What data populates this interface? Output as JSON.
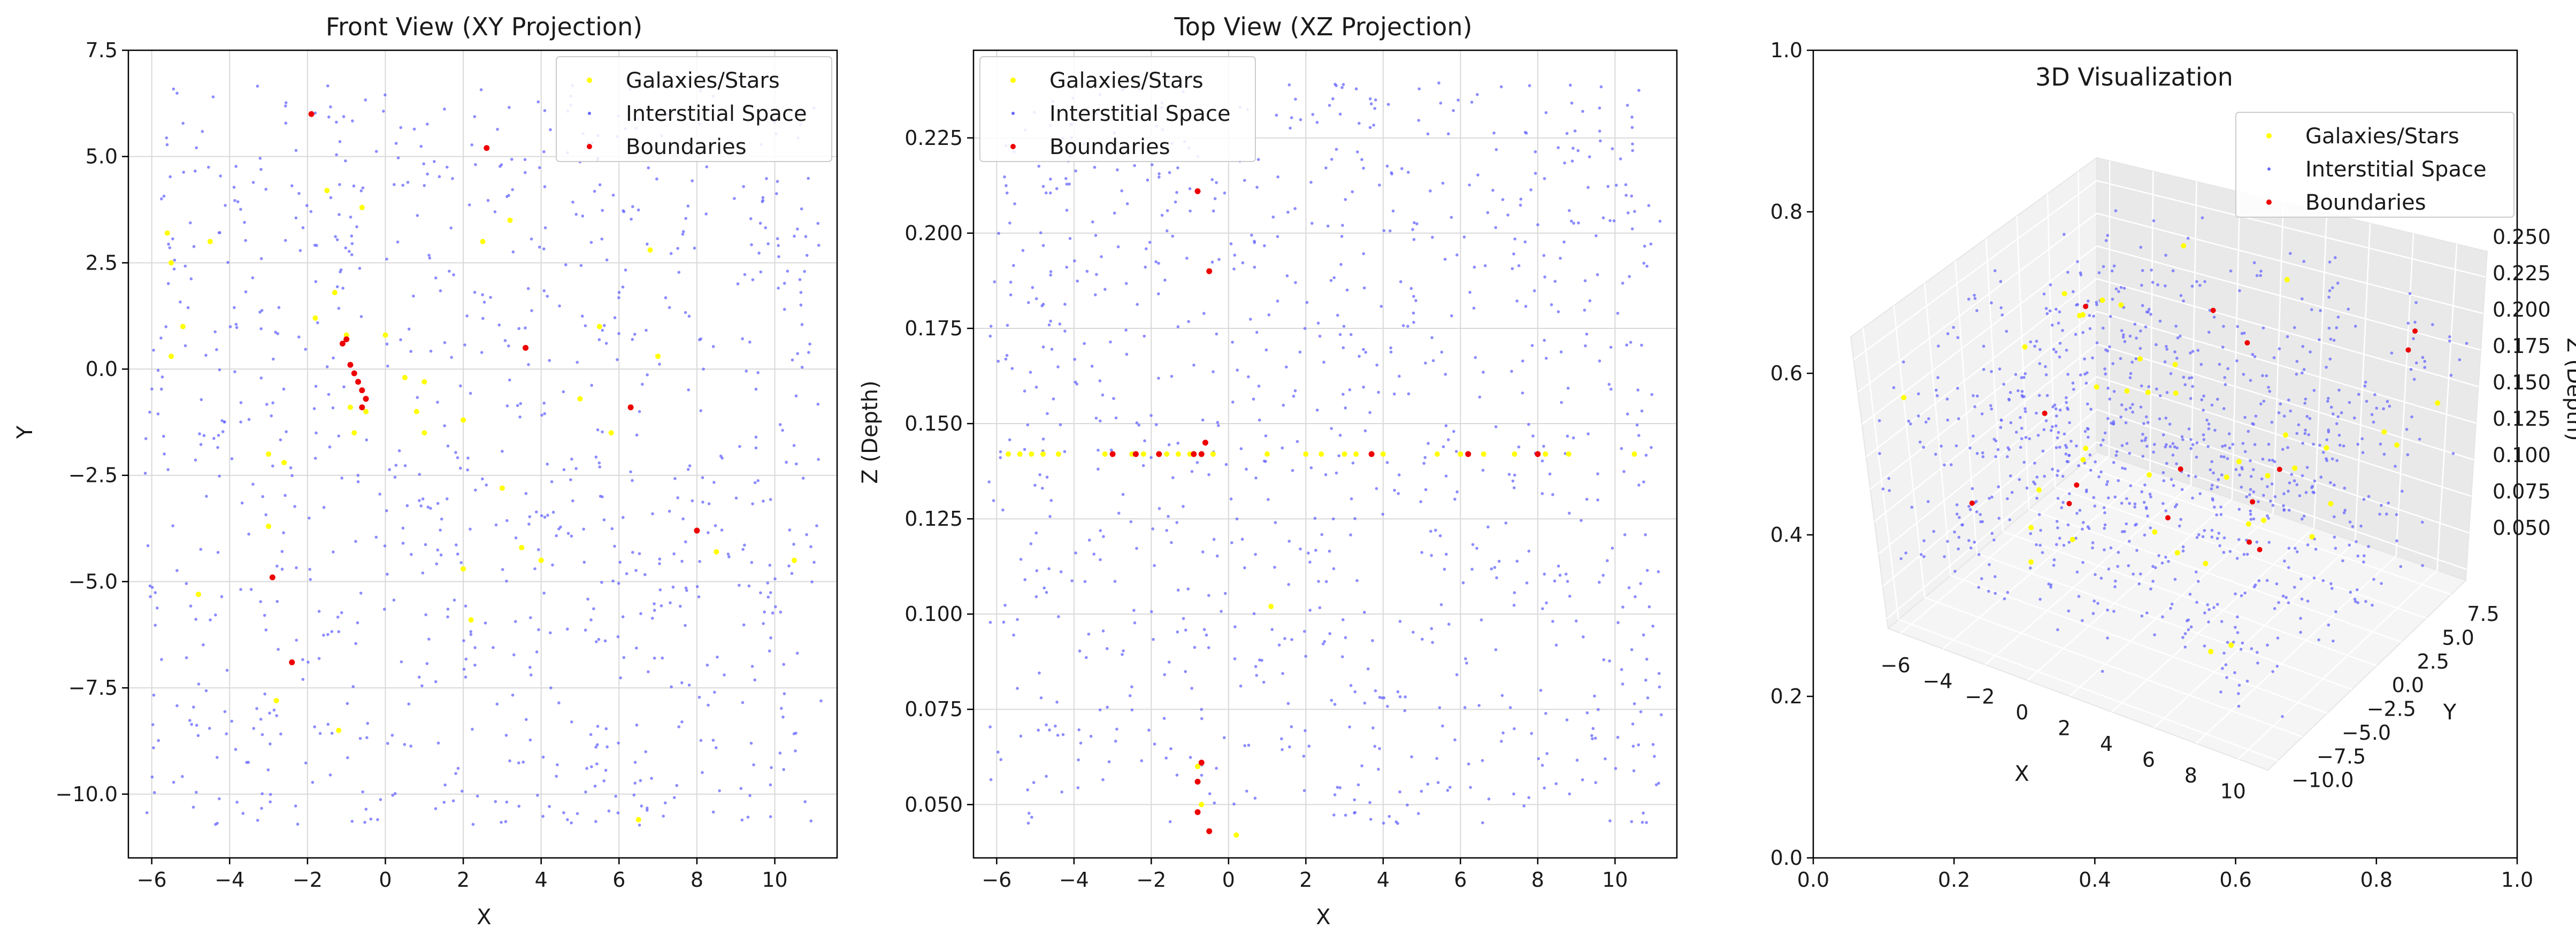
{
  "chart_data": [
    {
      "type": "scatter",
      "title": "Front View (XY Projection)",
      "xlabel": "X",
      "ylabel": "Y",
      "xlim": [
        -6.6,
        11.6
      ],
      "ylim": [
        -11.5,
        7.5
      ],
      "xticks": [
        -6,
        -4,
        -2,
        0,
        2,
        4,
        6,
        8,
        10
      ],
      "yticks": [
        -10.0,
        -7.5,
        -5.0,
        -2.5,
        0.0,
        2.5,
        5.0,
        7.5
      ],
      "ytick_labels": [
        "−10.0",
        "−7.5",
        "−5.0",
        "−2.5",
        "0.0",
        "2.5",
        "5.0",
        "7.5"
      ],
      "xtick_labels": [
        "−6",
        "−4",
        "−2",
        "0",
        "2",
        "4",
        "6",
        "8",
        "10"
      ],
      "grid": true,
      "legend": "top-right",
      "series": [
        {
          "name": "Galaxies/Stars",
          "color": "#ffff00",
          "x": [
            -5.6,
            -5.5,
            -5.2,
            -4.5,
            -3.0,
            -2.8,
            -1.5,
            -1.3,
            -1.0,
            -0.8,
            -0.6,
            0.0,
            0.5,
            1.0,
            2.0,
            2.2,
            2.5,
            3.0,
            3.2,
            4.0,
            5.0,
            5.5,
            5.8,
            7.0,
            6.8,
            -4.8,
            -2.6,
            -1.2,
            2.0,
            3.5,
            6.5,
            8.5,
            10.5,
            -5.5,
            -3.0,
            1.0,
            -0.5,
            -1.8,
            -0.9,
            0.8
          ],
          "y": [
            3.2,
            2.5,
            1.0,
            3.0,
            -2.0,
            -7.8,
            4.2,
            1.8,
            0.8,
            -1.5,
            3.8,
            0.8,
            -0.2,
            -0.3,
            -4.7,
            -5.9,
            3.0,
            -2.8,
            3.5,
            -4.5,
            -0.7,
            1.0,
            -1.5,
            0.3,
            2.8,
            -5.3,
            -2.2,
            -8.5,
            -1.2,
            -4.2,
            -10.6,
            -4.3,
            -4.5,
            0.3,
            -3.7,
            -1.5,
            -1.0,
            1.2,
            -0.9,
            -1.0
          ]
        },
        {
          "name": "Interstitial Space",
          "color": "#6666ff",
          "generated": true,
          "count": 900
        },
        {
          "name": "Boundaries",
          "color": "#ee0000",
          "x": [
            -1.9,
            2.6,
            -1.0,
            -0.9,
            -0.8,
            -0.7,
            -0.6,
            -0.5,
            -0.6,
            3.6,
            6.3,
            8.0,
            -2.9,
            -2.4,
            -1.1
          ],
          "y": [
            6.0,
            5.2,
            0.7,
            0.1,
            -0.1,
            -0.3,
            -0.5,
            -0.7,
            -0.9,
            0.5,
            -0.9,
            -3.8,
            -4.9,
            -6.9,
            0.6
          ]
        }
      ]
    },
    {
      "type": "scatter",
      "title": "Top View (XZ Projection)",
      "xlabel": "X",
      "ylabel": "Z (Depth)",
      "xlim": [
        -6.6,
        11.6
      ],
      "ylim": [
        0.036,
        0.248
      ],
      "xticks": [
        -6,
        -4,
        -2,
        0,
        2,
        4,
        6,
        8,
        10
      ],
      "xtick_labels": [
        "−6",
        "−4",
        "−2",
        "0",
        "2",
        "4",
        "6",
        "8",
        "10"
      ],
      "yticks": [
        0.05,
        0.075,
        0.1,
        0.125,
        0.15,
        0.175,
        0.2,
        0.225
      ],
      "ytick_labels": [
        "0.050",
        "0.075",
        "0.100",
        "0.125",
        "0.150",
        "0.175",
        "0.200",
        "0.225"
      ],
      "grid": true,
      "legend": "top-left",
      "series": [
        {
          "name": "Galaxies/Stars",
          "color": "#ffff00",
          "x": [
            -5.7,
            -5.4,
            -5.1,
            -4.8,
            -4.4,
            -3.2,
            -2.5,
            -2.2,
            -1.6,
            -1.3,
            -1.0,
            -0.7,
            -0.4,
            1.0,
            2.0,
            2.4,
            3.0,
            3.3,
            4.0,
            5.4,
            6.0,
            6.6,
            7.4,
            8.2,
            8.8,
            10.5,
            1.1,
            -0.8,
            -0.7,
            0.2
          ],
          "y": [
            0.142,
            0.142,
            0.142,
            0.142,
            0.142,
            0.142,
            0.142,
            0.142,
            0.142,
            0.142,
            0.142,
            0.142,
            0.142,
            0.142,
            0.142,
            0.142,
            0.142,
            0.142,
            0.142,
            0.142,
            0.142,
            0.142,
            0.142,
            0.142,
            0.142,
            0.142,
            0.102,
            0.06,
            0.05,
            0.042
          ]
        },
        {
          "name": "Interstitial Space",
          "color": "#6666ff",
          "generated": true,
          "count": 900
        },
        {
          "name": "Boundaries",
          "color": "#ee0000",
          "x": [
            -3.0,
            -2.4,
            -1.8,
            -0.9,
            -0.7,
            -0.6,
            -0.8,
            3.7,
            6.2,
            8.0,
            -0.8,
            -0.5,
            -0.8,
            -0.7,
            -0.5
          ],
          "y": [
            0.142,
            0.142,
            0.142,
            0.142,
            0.142,
            0.145,
            0.211,
            0.142,
            0.142,
            0.142,
            0.056,
            0.19,
            0.048,
            0.061,
            0.043
          ]
        }
      ]
    },
    {
      "type": "scatter3d",
      "title": "3D Visualization",
      "xlabel": "X",
      "ylabel": "Y",
      "zlabel": "Z (Depth)",
      "xticks": [
        "−6",
        "−4",
        "−2",
        "0",
        "2",
        "4",
        "6",
        "8",
        "10"
      ],
      "yticks": [
        "−10.0",
        "−7.5",
        "−5.0",
        "−2.5",
        "0.0",
        "2.5",
        "5.0",
        "7.5"
      ],
      "zticks": [
        "0.050",
        "0.075",
        "0.100",
        "0.125",
        "0.150",
        "0.175",
        "0.200",
        "0.225",
        "0.250"
      ],
      "outer_xticks": [
        "0.0",
        "0.2",
        "0.4",
        "0.6",
        "0.8",
        "1.0"
      ],
      "outer_yticks": [
        "0.0",
        "0.2",
        "0.4",
        "0.6",
        "0.8",
        "1.0"
      ],
      "legend": "top-right",
      "series": [
        {
          "name": "Galaxies/Stars",
          "color": "#ffff00",
          "generated": true,
          "count": 40
        },
        {
          "name": "Interstitial Space",
          "color": "#6666ff",
          "generated": true,
          "count": 900
        },
        {
          "name": "Boundaries",
          "color": "#ee0000",
          "generated": true,
          "count": 15
        }
      ]
    }
  ]
}
